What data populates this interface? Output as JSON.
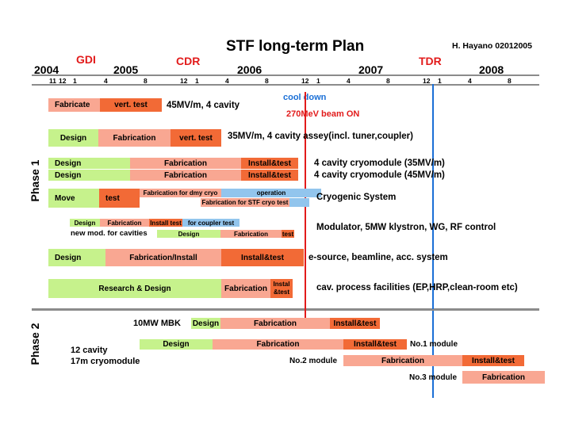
{
  "title": "STF long-term Plan",
  "author": "H. Hayano 02012005",
  "years": [
    "2004",
    "2005",
    "2006",
    "2007",
    "2008"
  ],
  "milestones": [
    "GDI",
    "CDR",
    "TDR"
  ],
  "months": [
    "11",
    "12",
    "1",
    "4",
    "8",
    "12",
    "1",
    "4",
    "8",
    "12",
    "1",
    "4",
    "8",
    "12",
    "1",
    "4",
    "8"
  ],
  "markers": {
    "cool_down": "cool down",
    "beam_on": "270MeV beam ON"
  },
  "phases": [
    "Phase 1",
    "Phase 2"
  ],
  "rows": {
    "r1": {
      "b1": "Fabricate",
      "b2": "vert. test",
      "desc": "45MV/m, 4 cavity"
    },
    "r2": {
      "b1": "Design",
      "b2": "Fabrication",
      "b3": "vert. test",
      "desc": "35MV/m, 4 cavity assey(incl. tuner,coupler)"
    },
    "r3": {
      "b1": "Design",
      "b2": "Fabrication",
      "b3": "Install&test",
      "desc": "4 cavity cryomodule (35MV/m)"
    },
    "r4": {
      "b1": "Design",
      "b2": "Fabrication",
      "b3": "Install&test",
      "desc": "4 cavity cryomodule (45MV/m)"
    },
    "r5": {
      "b1": "Move",
      "b2": "test",
      "b3": "Fabrication for dmy cryo",
      "b4": "operation",
      "b5": "Fabrication for STF cryo test",
      "desc": "Cryogenic System"
    },
    "r6": {
      "b1": "Design",
      "b2": "Fabrication",
      "b3": "Install test",
      "b4": "for coupler test",
      "sub": "new mod. for cavities",
      "b5": "Design",
      "b6": "Fabrication",
      "b7": "test",
      "desc": "Modulator, 5MW klystron, WG, RF control"
    },
    "r7": {
      "b1": "Design",
      "b2": "Fabrication/Install",
      "b3": "Install&test",
      "desc": "e-source, beamline, acc. system"
    },
    "r8": {
      "b1": "Research & Design",
      "b2": "Fabrication",
      "b3a": "Instal",
      "b3b": "&test",
      "desc": "cav. process facilities (EP,HRP,clean-room etc)"
    },
    "p2a": {
      "label": "10MW MBK",
      "b1": "Design",
      "b2": "Fabrication",
      "b3": "Install&test"
    },
    "p2b": {
      "label1": "12 cavity",
      "label2": "17m cryomodule",
      "b1": "Design",
      "b2": "Fabrication",
      "b3": "Install&test",
      "tag": "No.1 module"
    },
    "p2c": {
      "tag": "No.2 module",
      "b1": "Fabrication",
      "b2": "Install&test"
    },
    "p2d": {
      "tag": "No.3 module",
      "b1": "Fabrication"
    }
  }
}
